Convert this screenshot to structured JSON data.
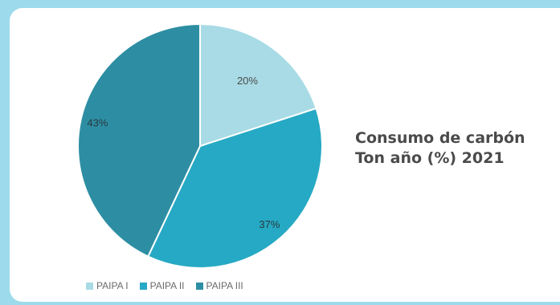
{
  "chart_data": {
    "type": "pie",
    "title_lines": [
      "Consumo de carbón",
      "Ton año (%) 2021"
    ],
    "categories": [
      "PAIPA I",
      "PAIPA II",
      "PAIPA III"
    ],
    "values": [
      20,
      37,
      43
    ],
    "labels": [
      "20%",
      "37%",
      "43%"
    ],
    "colors": [
      "#a8dbe5",
      "#26a9c4",
      "#2d8ea3"
    ],
    "legend_position": "bottom"
  }
}
